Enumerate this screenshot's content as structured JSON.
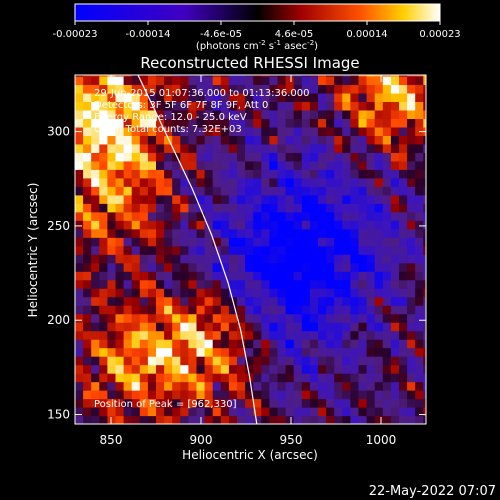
{
  "chart_data": {
    "type": "heatmap",
    "title": "Reconstructed RHESSI Image",
    "xlabel": "Heliocentric X (arcsec)",
    "ylabel": "Heliocentric Y (arcsec)",
    "xlim": [
      830,
      1025
    ],
    "ylim": [
      145,
      330
    ],
    "x_ticks": [
      850,
      900,
      950,
      1000
    ],
    "y_ticks": [
      150,
      200,
      250,
      300
    ],
    "colorbar": {
      "ticks": [
        "-0.00023",
        "-0.00014",
        "-4.6e-05",
        "4.6e-05",
        "0.00014",
        "0.00023"
      ],
      "range": [
        -0.00023,
        0.00023
      ],
      "unit_base": "(photons cm",
      "unit_exp1": "-2",
      "unit_mid": " s",
      "unit_exp2": "-1",
      "unit_end": " asec",
      "unit_exp3": "-2",
      "unit_close": ")"
    },
    "annotations": {
      "time_range": "29-Jun-2015 01:07:36.000 to 01:13:36.000",
      "detectors": "Detectors: 3F 5F 6F 7F 8F 9F, Att 0",
      "energy": "Energy Range: 12.0 - 25.0 keV",
      "method_counts": "Clean    Total counts: 7.32E+03",
      "peak": "Position of Peak = [962,330]"
    },
    "limb_points": [
      [
        865,
        330
      ],
      [
        880,
        300
      ],
      [
        895,
        270
      ],
      [
        906,
        245
      ],
      [
        915,
        220
      ],
      [
        922,
        195
      ],
      [
        927,
        170
      ],
      [
        931,
        145
      ]
    ],
    "hot_regions": [
      {
        "x": 845,
        "y": 305,
        "weight": 1.0
      },
      {
        "x": 905,
        "y": 190,
        "weight": 0.9
      },
      {
        "x": 1005,
        "y": 320,
        "weight": 0.75
      },
      {
        "x": 860,
        "y": 175,
        "weight": 0.6
      },
      {
        "x": 850,
        "y": 260,
        "weight": 0.5
      }
    ],
    "cold_regions": [
      {
        "x": 960,
        "y": 240,
        "weight": 1.0
      },
      {
        "x": 930,
        "y": 210,
        "weight": 0.7
      }
    ]
  },
  "footer": {
    "timestamp": "22-May-2022 07:07"
  }
}
